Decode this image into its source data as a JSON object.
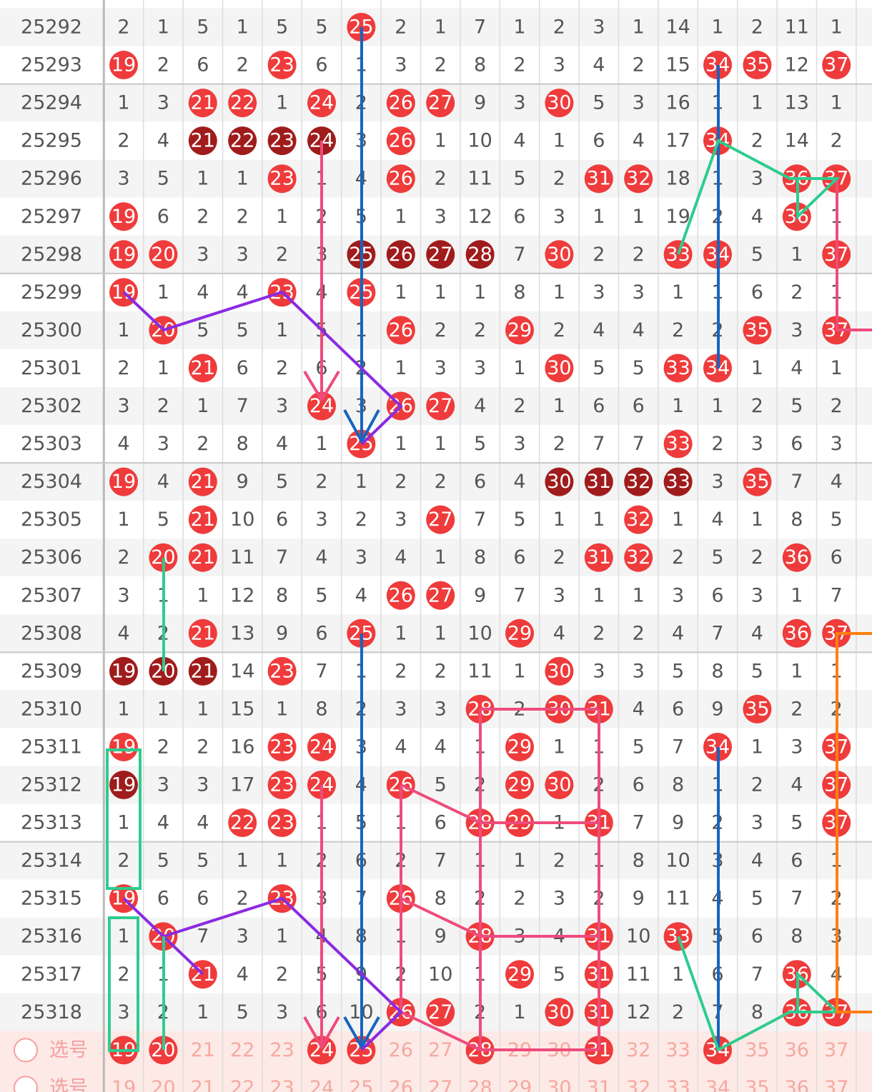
{
  "columns": [
    "19",
    "20",
    "21",
    "22",
    "23",
    "24",
    "25",
    "26",
    "27",
    "28",
    "29",
    "30",
    "31",
    "32",
    "33",
    "34",
    "35",
    "36",
    "37"
  ],
  "rows": [
    {
      "period": "25292",
      "cells": [
        2,
        1,
        5,
        1,
        5,
        5,
        25,
        2,
        1,
        7,
        1,
        2,
        3,
        1,
        14,
        1,
        2,
        11,
        1
      ],
      "styles": [
        0,
        0,
        0,
        0,
        0,
        0,
        1,
        0,
        0,
        0,
        0,
        0,
        0,
        0,
        0,
        0,
        0,
        0,
        0
      ]
    },
    {
      "period": "25293",
      "cells": [
        19,
        2,
        6,
        2,
        23,
        6,
        1,
        3,
        2,
        8,
        2,
        3,
        4,
        2,
        15,
        34,
        35,
        12,
        37
      ],
      "styles": [
        1,
        0,
        0,
        0,
        1,
        0,
        0,
        0,
        0,
        0,
        0,
        0,
        0,
        0,
        0,
        1,
        1,
        0,
        1
      ]
    },
    {
      "period": "25294",
      "cells": [
        1,
        3,
        21,
        22,
        1,
        24,
        2,
        26,
        27,
        9,
        3,
        30,
        5,
        3,
        16,
        1,
        1,
        13,
        1
      ],
      "styles": [
        0,
        0,
        1,
        1,
        0,
        1,
        0,
        1,
        1,
        0,
        0,
        1,
        0,
        0,
        0,
        0,
        0,
        0,
        0
      ]
    },
    {
      "period": "25295",
      "cells": [
        2,
        4,
        21,
        22,
        23,
        24,
        3,
        26,
        1,
        10,
        4,
        1,
        6,
        4,
        17,
        34,
        2,
        14,
        2
      ],
      "styles": [
        0,
        0,
        2,
        2,
        2,
        2,
        0,
        1,
        0,
        0,
        0,
        0,
        0,
        0,
        0,
        1,
        0,
        0,
        0
      ]
    },
    {
      "period": "25296",
      "cells": [
        3,
        5,
        1,
        1,
        23,
        1,
        4,
        26,
        2,
        11,
        5,
        2,
        31,
        32,
        18,
        1,
        3,
        36,
        37
      ],
      "styles": [
        0,
        0,
        0,
        0,
        1,
        0,
        0,
        1,
        0,
        0,
        0,
        0,
        1,
        1,
        0,
        0,
        0,
        1,
        1
      ]
    },
    {
      "period": "25297",
      "cells": [
        19,
        6,
        2,
        2,
        1,
        2,
        5,
        1,
        3,
        12,
        6,
        3,
        1,
        1,
        19,
        2,
        4,
        36,
        1
      ],
      "styles": [
        1,
        0,
        0,
        0,
        0,
        0,
        0,
        0,
        0,
        0,
        0,
        0,
        0,
        0,
        0,
        0,
        0,
        1,
        0
      ]
    },
    {
      "period": "25298",
      "cells": [
        19,
        20,
        3,
        3,
        2,
        3,
        25,
        26,
        27,
        28,
        7,
        30,
        2,
        2,
        33,
        34,
        5,
        1,
        37
      ],
      "styles": [
        1,
        1,
        0,
        0,
        0,
        0,
        2,
        2,
        2,
        2,
        0,
        1,
        0,
        0,
        1,
        1,
        0,
        0,
        1
      ]
    },
    {
      "period": "25299",
      "cells": [
        19,
        1,
        4,
        4,
        23,
        4,
        25,
        1,
        1,
        1,
        8,
        1,
        3,
        3,
        1,
        1,
        6,
        2,
        1
      ],
      "styles": [
        1,
        0,
        0,
        0,
        1,
        0,
        1,
        0,
        0,
        0,
        0,
        0,
        0,
        0,
        0,
        0,
        0,
        0,
        0
      ]
    },
    {
      "period": "25300",
      "cells": [
        1,
        20,
        5,
        5,
        1,
        5,
        1,
        26,
        2,
        2,
        29,
        2,
        4,
        4,
        2,
        2,
        35,
        3,
        37
      ],
      "styles": [
        0,
        1,
        0,
        0,
        0,
        0,
        0,
        1,
        0,
        0,
        1,
        0,
        0,
        0,
        0,
        0,
        1,
        0,
        1
      ]
    },
    {
      "period": "25301",
      "cells": [
        2,
        1,
        21,
        6,
        2,
        6,
        2,
        1,
        3,
        3,
        1,
        30,
        5,
        5,
        33,
        34,
        1,
        4,
        1
      ],
      "styles": [
        0,
        0,
        1,
        0,
        0,
        0,
        0,
        0,
        0,
        0,
        0,
        1,
        0,
        0,
        1,
        1,
        0,
        0,
        0
      ]
    },
    {
      "period": "25302",
      "cells": [
        3,
        2,
        1,
        7,
        3,
        24,
        3,
        26,
        27,
        4,
        2,
        1,
        6,
        6,
        1,
        1,
        2,
        5,
        2
      ],
      "styles": [
        0,
        0,
        0,
        0,
        0,
        1,
        0,
        1,
        1,
        0,
        0,
        0,
        0,
        0,
        0,
        0,
        0,
        0,
        0
      ]
    },
    {
      "period": "25303",
      "cells": [
        4,
        3,
        2,
        8,
        4,
        1,
        25,
        1,
        1,
        5,
        3,
        2,
        7,
        7,
        33,
        2,
        3,
        6,
        3
      ],
      "styles": [
        0,
        0,
        0,
        0,
        0,
        0,
        1,
        0,
        0,
        0,
        0,
        0,
        0,
        0,
        1,
        0,
        0,
        0,
        0
      ]
    },
    {
      "period": "25304",
      "cells": [
        19,
        4,
        21,
        9,
        5,
        2,
        1,
        2,
        2,
        6,
        4,
        30,
        31,
        32,
        33,
        3,
        35,
        7,
        4
      ],
      "styles": [
        1,
        0,
        1,
        0,
        0,
        0,
        0,
        0,
        0,
        0,
        0,
        2,
        2,
        2,
        2,
        0,
        1,
        0,
        0
      ]
    },
    {
      "period": "25305",
      "cells": [
        1,
        5,
        21,
        10,
        6,
        3,
        2,
        3,
        27,
        7,
        5,
        1,
        1,
        32,
        1,
        4,
        1,
        8,
        5
      ],
      "styles": [
        0,
        0,
        1,
        0,
        0,
        0,
        0,
        0,
        1,
        0,
        0,
        0,
        0,
        1,
        0,
        0,
        0,
        0,
        0
      ]
    },
    {
      "period": "25306",
      "cells": [
        2,
        20,
        21,
        11,
        7,
        4,
        3,
        4,
        1,
        8,
        6,
        2,
        31,
        32,
        2,
        5,
        2,
        36,
        6
      ],
      "styles": [
        0,
        1,
        1,
        0,
        0,
        0,
        0,
        0,
        0,
        0,
        0,
        0,
        1,
        1,
        0,
        0,
        0,
        1,
        0
      ]
    },
    {
      "period": "25307",
      "cells": [
        3,
        1,
        1,
        12,
        8,
        5,
        4,
        26,
        27,
        9,
        7,
        3,
        1,
        1,
        3,
        6,
        3,
        1,
        7
      ],
      "styles": [
        0,
        0,
        0,
        0,
        0,
        0,
        0,
        1,
        1,
        0,
        0,
        0,
        0,
        0,
        0,
        0,
        0,
        0,
        0
      ]
    },
    {
      "period": "25308",
      "cells": [
        4,
        2,
        21,
        13,
        9,
        6,
        25,
        1,
        1,
        10,
        29,
        4,
        2,
        2,
        4,
        7,
        4,
        36,
        37
      ],
      "styles": [
        0,
        0,
        1,
        0,
        0,
        0,
        1,
        0,
        0,
        0,
        1,
        0,
        0,
        0,
        0,
        0,
        0,
        1,
        1
      ]
    },
    {
      "period": "25309",
      "cells": [
        19,
        20,
        21,
        14,
        23,
        7,
        1,
        2,
        2,
        11,
        1,
        30,
        3,
        3,
        5,
        8,
        5,
        1,
        1
      ],
      "styles": [
        2,
        2,
        2,
        0,
        1,
        0,
        0,
        0,
        0,
        0,
        0,
        1,
        0,
        0,
        0,
        0,
        0,
        0,
        0
      ]
    },
    {
      "period": "25310",
      "cells": [
        1,
        1,
        1,
        15,
        1,
        8,
        2,
        3,
        3,
        28,
        2,
        30,
        31,
        4,
        6,
        9,
        35,
        2,
        2
      ],
      "styles": [
        0,
        0,
        0,
        0,
        0,
        0,
        0,
        0,
        0,
        1,
        0,
        1,
        1,
        0,
        0,
        0,
        1,
        0,
        0
      ]
    },
    {
      "period": "25311",
      "cells": [
        19,
        2,
        2,
        16,
        23,
        24,
        3,
        4,
        4,
        1,
        29,
        1,
        1,
        5,
        7,
        34,
        1,
        3,
        37
      ],
      "styles": [
        1,
        0,
        0,
        0,
        1,
        1,
        0,
        0,
        0,
        0,
        1,
        0,
        0,
        0,
        0,
        1,
        0,
        0,
        1
      ]
    },
    {
      "period": "25312",
      "cells": [
        19,
        3,
        3,
        17,
        23,
        24,
        4,
        26,
        5,
        2,
        29,
        30,
        2,
        6,
        8,
        1,
        2,
        4,
        37
      ],
      "styles": [
        2,
        0,
        0,
        0,
        1,
        1,
        0,
        1,
        0,
        0,
        1,
        1,
        0,
        0,
        0,
        0,
        0,
        0,
        1
      ]
    },
    {
      "period": "25313",
      "cells": [
        1,
        4,
        4,
        22,
        23,
        1,
        5,
        1,
        6,
        28,
        29,
        1,
        31,
        7,
        9,
        2,
        3,
        5,
        37
      ],
      "styles": [
        0,
        0,
        0,
        1,
        1,
        0,
        0,
        0,
        0,
        1,
        1,
        0,
        1,
        0,
        0,
        0,
        0,
        0,
        1
      ]
    },
    {
      "period": "25314",
      "cells": [
        2,
        5,
        5,
        1,
        1,
        2,
        6,
        2,
        7,
        1,
        1,
        2,
        1,
        8,
        10,
        3,
        4,
        6,
        1
      ],
      "styles": [
        0,
        0,
        0,
        0,
        0,
        0,
        0,
        0,
        0,
        0,
        0,
        0,
        0,
        0,
        0,
        0,
        0,
        0,
        0
      ]
    },
    {
      "period": "25315",
      "cells": [
        19,
        6,
        6,
        2,
        23,
        3,
        7,
        26,
        8,
        2,
        2,
        3,
        2,
        9,
        11,
        4,
        5,
        7,
        2
      ],
      "styles": [
        1,
        0,
        0,
        0,
        1,
        0,
        0,
        1,
        0,
        0,
        0,
        0,
        0,
        0,
        0,
        0,
        0,
        0,
        0
      ]
    },
    {
      "period": "25316",
      "cells": [
        1,
        20,
        7,
        3,
        1,
        4,
        8,
        1,
        9,
        28,
        3,
        4,
        31,
        10,
        33,
        5,
        6,
        8,
        3
      ],
      "styles": [
        0,
        1,
        0,
        0,
        0,
        0,
        0,
        0,
        0,
        1,
        0,
        0,
        1,
        0,
        1,
        0,
        0,
        0,
        0
      ]
    },
    {
      "period": "25317",
      "cells": [
        2,
        1,
        21,
        4,
        2,
        5,
        9,
        2,
        10,
        1,
        29,
        5,
        31,
        11,
        1,
        6,
        7,
        36,
        4
      ],
      "styles": [
        0,
        0,
        1,
        0,
        0,
        0,
        0,
        0,
        0,
        0,
        1,
        0,
        1,
        0,
        0,
        0,
        0,
        1,
        0
      ]
    },
    {
      "period": "25318",
      "cells": [
        3,
        2,
        1,
        5,
        3,
        6,
        10,
        26,
        27,
        2,
        1,
        30,
        31,
        12,
        2,
        7,
        8,
        36,
        37
      ],
      "styles": [
        0,
        0,
        0,
        0,
        0,
        0,
        0,
        1,
        1,
        0,
        0,
        1,
        1,
        0,
        0,
        0,
        0,
        1,
        1
      ]
    }
  ],
  "pick_rows": [
    {
      "label": "选号",
      "styles": [
        1,
        1,
        0,
        0,
        0,
        1,
        1,
        0,
        0,
        1,
        0,
        0,
        1,
        0,
        0,
        1,
        0,
        0,
        0
      ]
    },
    {
      "label": "选号",
      "styles": [
        0,
        0,
        0,
        0,
        0,
        0,
        0,
        0,
        0,
        0,
        0,
        0,
        0,
        0,
        0,
        0,
        0,
        0,
        0
      ]
    }
  ]
}
